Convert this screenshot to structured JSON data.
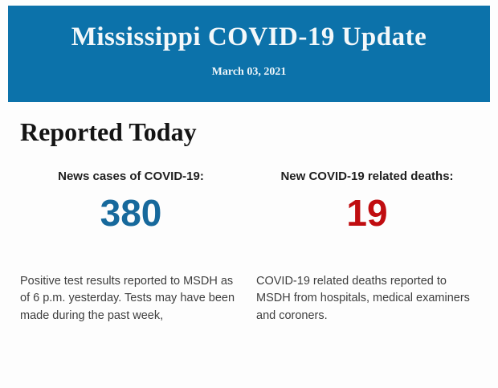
{
  "header": {
    "title": "Mississippi COVID-19 Update",
    "date": "March 03, 2021",
    "background_color": "#0c72aa",
    "text_color": "#f3f8fa"
  },
  "section": {
    "title": "Reported Today"
  },
  "stats": [
    {
      "label": "News cases of COVID-19:",
      "value": "380",
      "value_color": "#17699c",
      "description": "Positive test results reported to MSDH as of 6 p.m. yesterday. Tests may have been made during the past week,"
    },
    {
      "label": "New COVID-19 related deaths:",
      "value": "19",
      "value_color": "#c00d10",
      "description": "COVID-19 related deaths reported to MSDH from hospitals, medical examiners and coroners."
    }
  ]
}
